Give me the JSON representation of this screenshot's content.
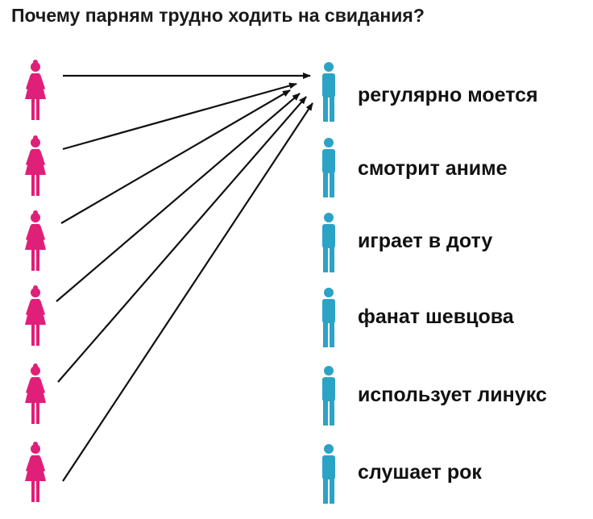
{
  "title": "Почему парням трудно ходить на свидания?",
  "colors": {
    "woman": "#e01f78",
    "man": "#2ba3c6",
    "arrow": "#111111"
  },
  "women_count": 6,
  "men": [
    {
      "label": "регулярно моется",
      "icon": "man-icon"
    },
    {
      "label": "смотрит аниме",
      "icon": "man-icon"
    },
    {
      "label": "играет в доту",
      "icon": "man-icon"
    },
    {
      "label": "фанат шевцова",
      "icon": "man-icon"
    },
    {
      "label": "использует линукс",
      "icon": "man-icon"
    },
    {
      "label": "слушает рок",
      "icon": "man-icon"
    }
  ],
  "arrows": [
    {
      "from_woman": 1,
      "to_man": 1
    },
    {
      "from_woman": 2,
      "to_man": 1
    },
    {
      "from_woman": 3,
      "to_man": 1
    },
    {
      "from_woman": 4,
      "to_man": 1
    },
    {
      "from_woman": 5,
      "to_man": 1
    },
    {
      "from_woman": 6,
      "to_man": 1
    }
  ]
}
